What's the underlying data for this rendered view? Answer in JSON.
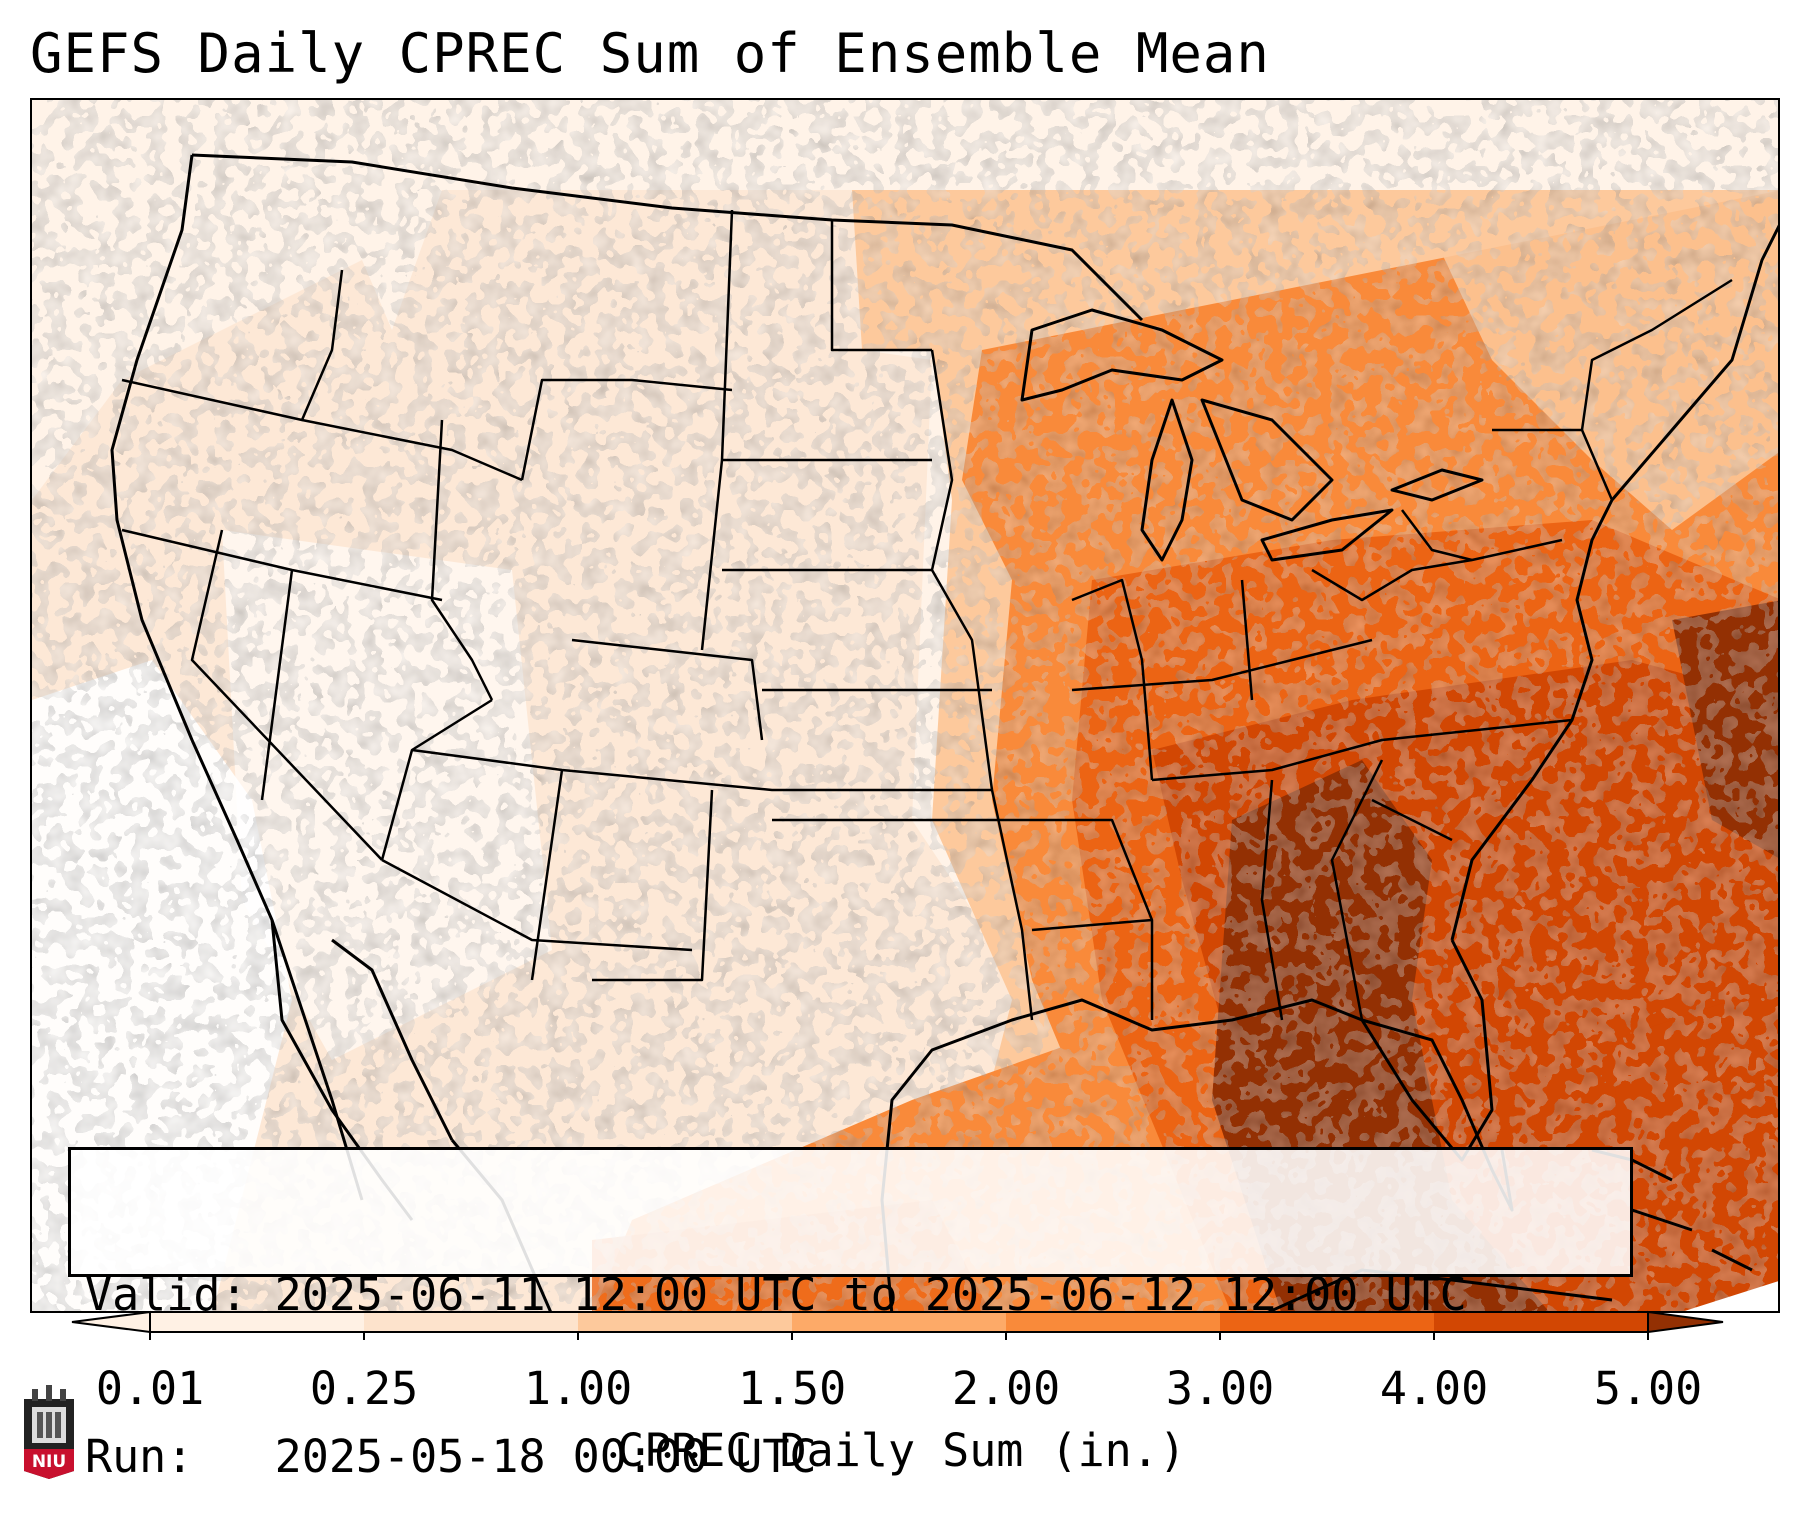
{
  "title": "GEFS Daily CPREC Sum of Ensemble Mean",
  "info": {
    "valid_label": "Valid:",
    "valid_value": "2025-06-11 12:00 UTC to 2025-06-12 12:00 UTC",
    "run_label": "Run:",
    "run_value": "2025-05-18 00:00 UTC"
  },
  "colorbar": {
    "label": "CPREC Daily Sum (in.)",
    "ticks": [
      "0.01",
      "0.25",
      "1.00",
      "1.50",
      "2.00",
      "3.00",
      "4.00",
      "5.00"
    ],
    "colors": [
      "#fff1e4",
      "#fde3cc",
      "#fdc99c",
      "#fdaa68",
      "#f98a3a",
      "#ec6414",
      "#d24703",
      "#933003"
    ]
  },
  "logo": {
    "text": "NIU",
    "color": "#c8102e"
  }
}
